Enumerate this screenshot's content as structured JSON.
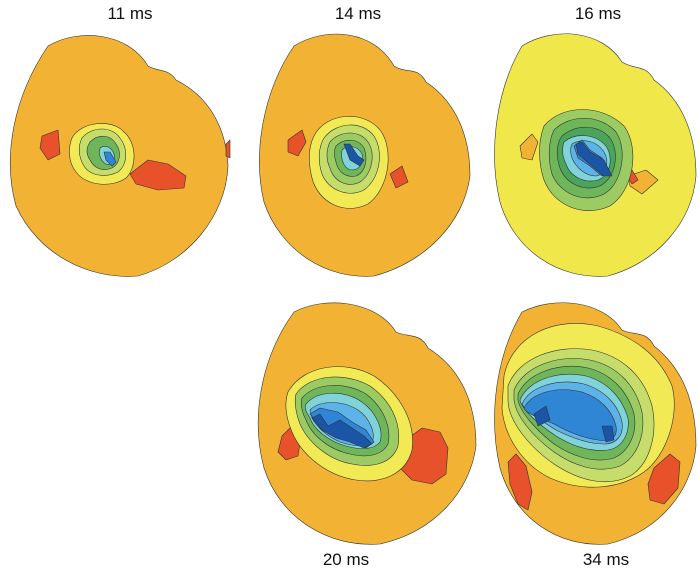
{
  "figure": {
    "panels": [
      {
        "id": "p11",
        "label": "11 ms",
        "stage": 0
      },
      {
        "id": "p14",
        "label": "14 ms",
        "stage": 1
      },
      {
        "id": "p16",
        "label": "16 ms",
        "stage": 2
      },
      {
        "id": "p20",
        "label": "20 ms",
        "stage": 3
      },
      {
        "id": "p34",
        "label": "34 ms",
        "stage": 4
      }
    ]
  },
  "colors": {
    "background_orange": "#F2B233",
    "background_yellow": "#F0E84A",
    "red": "#E8522A",
    "yellow": "#F2EA55",
    "light_green": "#C7DD6B",
    "green": "#9BCB62",
    "mid_green": "#6FB55A",
    "dark_green": "#4CA35A",
    "cyan": "#7FD3D9",
    "light_blue": "#5DB2E8",
    "blue": "#2E86D4",
    "dark_blue": "#1A55A6"
  }
}
